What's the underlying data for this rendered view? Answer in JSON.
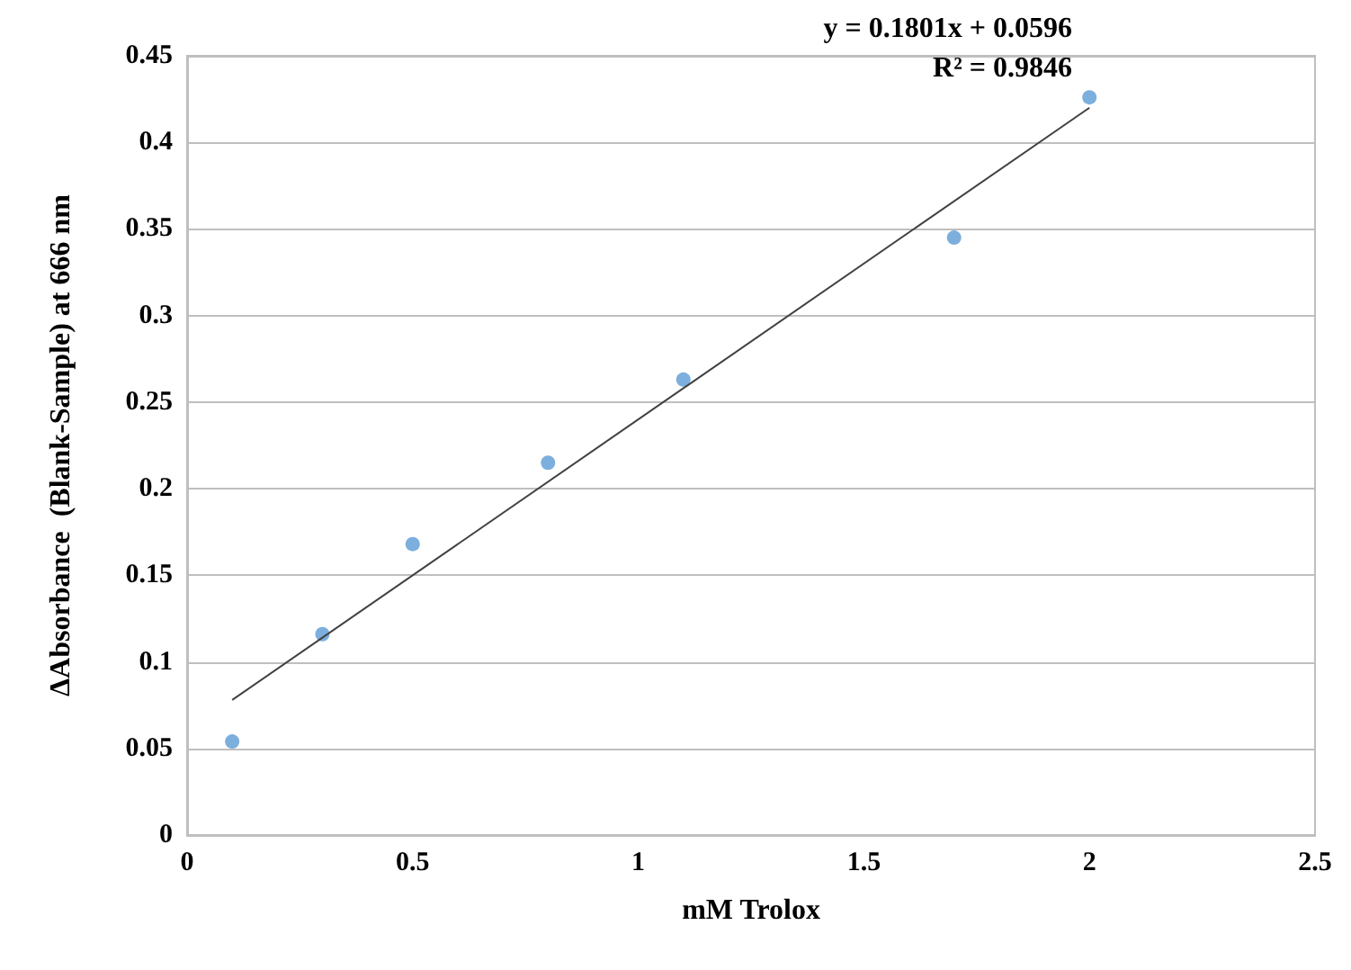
{
  "chart_data": {
    "type": "scatter",
    "xlabel": "mM Trolox",
    "ylabel": "ΔAbsorbance  (Blank-Sample) at 666 nm",
    "series": [
      {
        "color": "#5b9bd5",
        "marker": "circle",
        "x": [
          0.1,
          0.3,
          0.5,
          0.8,
          1.1,
          1.7,
          2.0
        ],
        "values": [
          0.054,
          0.116,
          0.168,
          0.215,
          0.263,
          0.345,
          0.426
        ]
      },
      {
        "type": "line",
        "marker": "none",
        "color": "#404040",
        "x": [
          0.1,
          2.0
        ],
        "values": [
          0.078,
          0.42
        ]
      }
    ],
    "xlim": [
      0,
      2.5
    ],
    "xticks": [
      0,
      0.5,
      1,
      1.5,
      2,
      2.5
    ],
    "ylim": [
      0,
      0.45
    ],
    "yticks": [
      0,
      0.05,
      0.1,
      0.15,
      0.2,
      0.25,
      0.3,
      0.35,
      0.4,
      0.45
    ],
    "grid": "y",
    "annotations": [
      "y = 0.1801x + 0.0596",
      "R² = 0.9846"
    ]
  }
}
